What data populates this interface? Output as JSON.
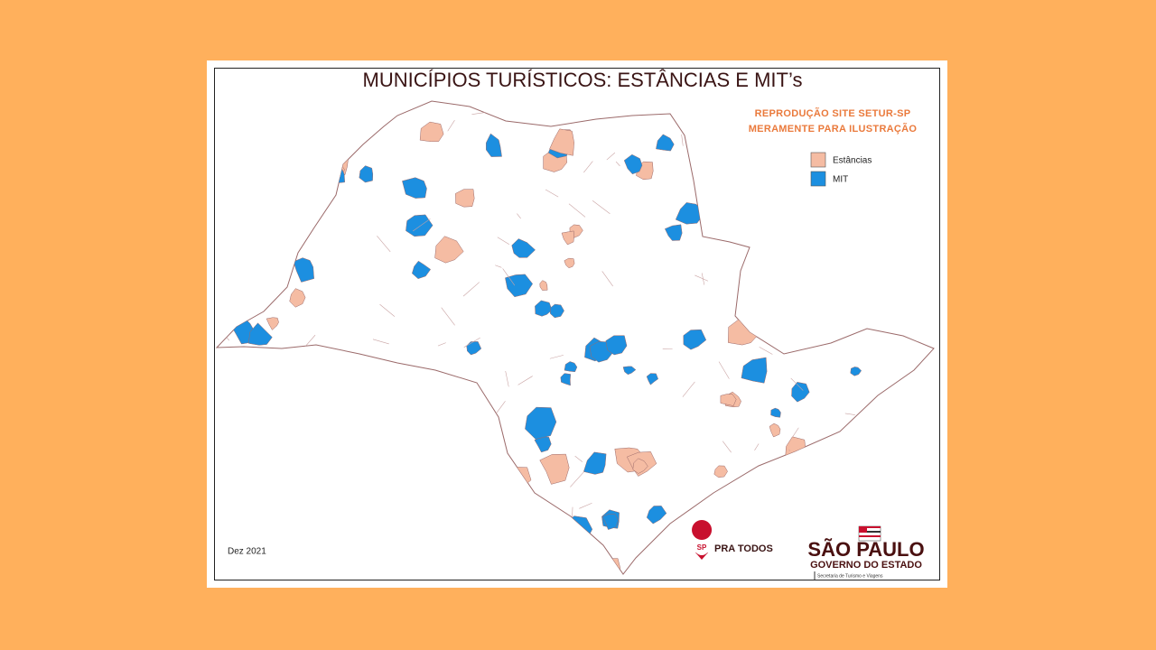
{
  "header": {
    "title": "MUNICÍPIOS TURÍSTICOS: ESTÂNCIAS E MIT’s",
    "notice": [
      "REPRODUÇÃO SITE SETUR-SP",
      "MERAMENTE PARA ILUSTRAÇÃO"
    ]
  },
  "legend": [
    {
      "label": "Estâncias",
      "color": "#f5bca3"
    },
    {
      "label": "MIT",
      "color": "#1c8fe0"
    }
  ],
  "footer": {
    "date": "Dez 2021",
    "campaign": {
      "badge": "SP",
      "text": "PRA TODOS"
    },
    "government": {
      "state": "SÃO PAULO",
      "subtitle": "GOVERNO DO ESTADO",
      "department": "Secretaria de Turismo e Viagens"
    }
  }
}
